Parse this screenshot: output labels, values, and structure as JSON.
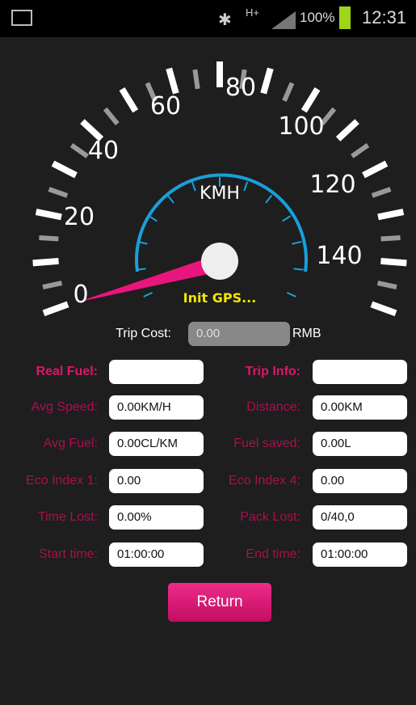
{
  "status_bar": {
    "network": "H+",
    "battery": "100%",
    "time": "12:31"
  },
  "speedometer": {
    "labels": [
      "0",
      "20",
      "40",
      "60",
      "80",
      "100",
      "120",
      "140"
    ],
    "unit": "KMH",
    "status": "Init GPS..."
  },
  "trip_cost": {
    "label": "Trip Cost:",
    "value": "0.00",
    "unit": "RMB"
  },
  "rows": [
    {
      "left": {
        "label": "Real Fuel:"
      },
      "right": {
        "label": "Trip Info:"
      }
    },
    {
      "left": {
        "label": "Avg Speed:",
        "value": "0.00KM/H"
      },
      "right": {
        "label": "Distance:",
        "value": "0.00KM"
      }
    },
    {
      "left": {
        "label": "Avg Fuel:",
        "value": "0.00CL/KM"
      },
      "right": {
        "label": "Fuel saved:",
        "value": "0.00L"
      }
    },
    {
      "left": {
        "label": "Eco Index 1:",
        "value": "0.00"
      },
      "right": {
        "label": "Eco Index 4:",
        "value": "0.00"
      }
    },
    {
      "left": {
        "label": "Time Lost:",
        "value": "0.00%"
      },
      "right": {
        "label": "Pack Lost:",
        "value": "0/40,0"
      }
    },
    {
      "left": {
        "label": "Start time:",
        "value": "01:00:00"
      },
      "right": {
        "label": "End time:",
        "value": "01:00:00"
      }
    }
  ],
  "return_button": "Return"
}
